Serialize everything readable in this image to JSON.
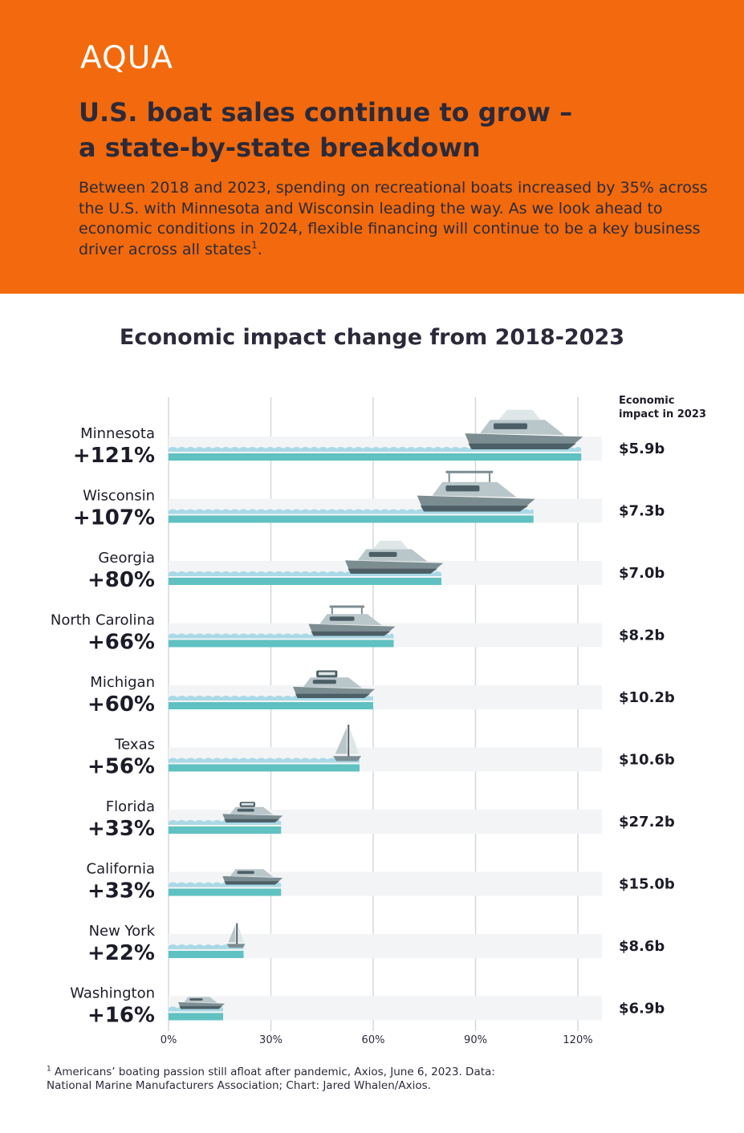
{
  "brand": {
    "logo": "AQUA"
  },
  "headline": {
    "line1": "U.S. boat sales continue to grow –",
    "line2": "a state-by-state breakdown"
  },
  "intro": {
    "text": "Between 2018 and 2023, spending on recreational boats increased by 35% across the U.S. with Minnesota and Wisconsin leading the way. As we look ahead to economic conditions in 2024, flexible financing will continue to be a key business driver across all states",
    "superscript": "1",
    "end": "."
  },
  "chart_data": {
    "type": "bar",
    "orientation": "horizontal",
    "title": "Economic impact change from 2018-2023",
    "value_column_header_line1": "Economic",
    "value_column_header_line2": "impact in 2023",
    "categories": [
      "Minnesota",
      "Wisconsin",
      "Georgia",
      "North Carolina",
      "Michigan",
      "Texas",
      "Florida",
      "California",
      "New York",
      "Washington"
    ],
    "percent_labels": [
      "+121%",
      "+107%",
      "+80%",
      "+66%",
      "+60%",
      "+56%",
      "+33%",
      "+33%",
      "+22%",
      "+16%"
    ],
    "values": [
      121,
      107,
      80,
      66,
      60,
      56,
      33,
      33,
      22,
      16
    ],
    "impact_2023": [
      "$5.9b",
      "$7.3b",
      "$7.0b",
      "$8.2b",
      "$10.2b",
      "$10.6b",
      "$27.2b",
      "$15.0b",
      "$8.6b",
      "$6.9b"
    ],
    "boat_icons": [
      "yacht-icon",
      "cabin-cruiser-icon",
      "sport-yacht-icon",
      "bowrider-icon",
      "pilothouse-icon",
      "sailboat-icon",
      "houseboat-icon",
      "speedboat-icon",
      "small-sailboat-icon",
      "skiff-icon"
    ],
    "xticks": [
      0,
      30,
      60,
      90,
      120
    ],
    "xtick_labels": [
      "0%",
      "30%",
      "60%",
      "90%",
      "120%"
    ],
    "xlim": [
      0,
      126
    ],
    "grid": true,
    "colors": {
      "bar": "#5fc1c1",
      "wave": "#a9d9e6",
      "track": "#f3f4f6",
      "grid": "#d5d7db",
      "boat": "#7c8d92",
      "boat_dark": "#4d5f66"
    }
  },
  "footnote": {
    "superscript": "1",
    "line1": "Americans’ boating passion still afloat after pandemic, Axios, June 6, 2023. Data:",
    "line2": "National Marine Manufacturers Association; Chart: Jared Whalen/Axios."
  }
}
